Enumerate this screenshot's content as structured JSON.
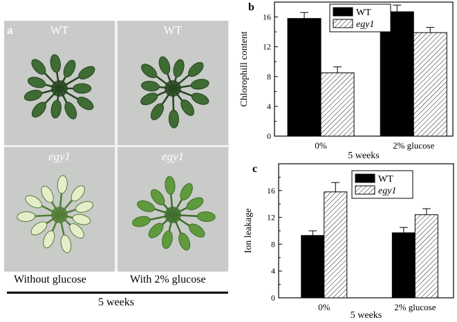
{
  "panel_a": {
    "letter": "a",
    "photos": [
      {
        "label": "WT",
        "italic": false
      },
      {
        "label": "WT",
        "italic": false
      },
      {
        "label": "egy1",
        "italic": true
      },
      {
        "label": "egy1",
        "italic": true
      }
    ],
    "conditions": [
      "Without glucose",
      "With 2% glucose"
    ],
    "time_label": "5 weeks",
    "colors": {
      "wt_leaf": "#3f6b34",
      "wt_leaf_dark": "#24451f",
      "egy1_pale": "#e6edc9",
      "egy1_glucose": "#5f9a3c",
      "background": "#c9cbc8"
    }
  },
  "chart_data": [
    {
      "panel": "b",
      "type": "bar",
      "categories": [
        "0%",
        "2% glucose"
      ],
      "series": [
        {
          "name": "WT",
          "values": [
            15.8,
            16.7
          ],
          "errors": [
            0.8,
            0.9
          ],
          "color": "#000000",
          "pattern": "solid"
        },
        {
          "name": "egy1",
          "values": [
            8.5,
            13.9
          ],
          "errors": [
            0.8,
            0.7
          ],
          "color": "#ffffff",
          "pattern": "hatched"
        }
      ],
      "title": "",
      "xlabel": "5 weeks",
      "ylabel": "Chlorophill content",
      "ylim": [
        0,
        18
      ],
      "yticks": [
        0,
        4,
        8,
        12,
        16
      ],
      "legend_position": "top-center",
      "grid": false
    },
    {
      "panel": "c",
      "type": "bar",
      "categories": [
        "0%",
        "2%  glucose"
      ],
      "series": [
        {
          "name": "WT",
          "values": [
            9.3,
            9.7
          ],
          "errors": [
            0.7,
            0.8
          ],
          "color": "#000000",
          "pattern": "solid"
        },
        {
          "name": "egy1",
          "values": [
            15.8,
            12.4
          ],
          "errors": [
            1.4,
            0.9
          ],
          "color": "#ffffff",
          "pattern": "hatched"
        }
      ],
      "title": "",
      "xlabel": "5 weeks",
      "ylabel": "Ion leakage",
      "ylim": [
        0,
        20
      ],
      "yticks": [
        0,
        4,
        8,
        12,
        16
      ],
      "legend_position": "top-center",
      "grid": false
    }
  ]
}
